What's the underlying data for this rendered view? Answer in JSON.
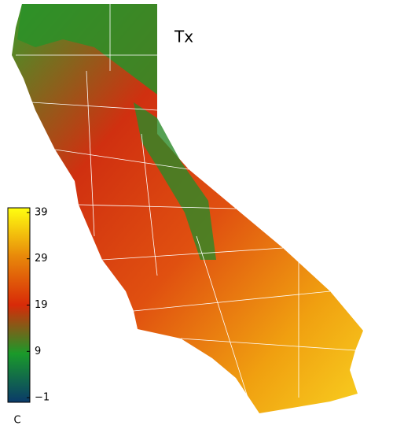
{
  "map": {
    "title": "Tx",
    "colorbar": {
      "unit": "C",
      "lim": [
        -2,
        40
      ],
      "ticks": [
        39,
        29,
        19,
        9,
        {
          "value": -1,
          "label": "−1"
        }
      ],
      "colors": [
        "#0a3a6a",
        "#1a9a2a",
        "#d82a08",
        "#e8880a",
        "#ffff10"
      ]
    }
  }
}
